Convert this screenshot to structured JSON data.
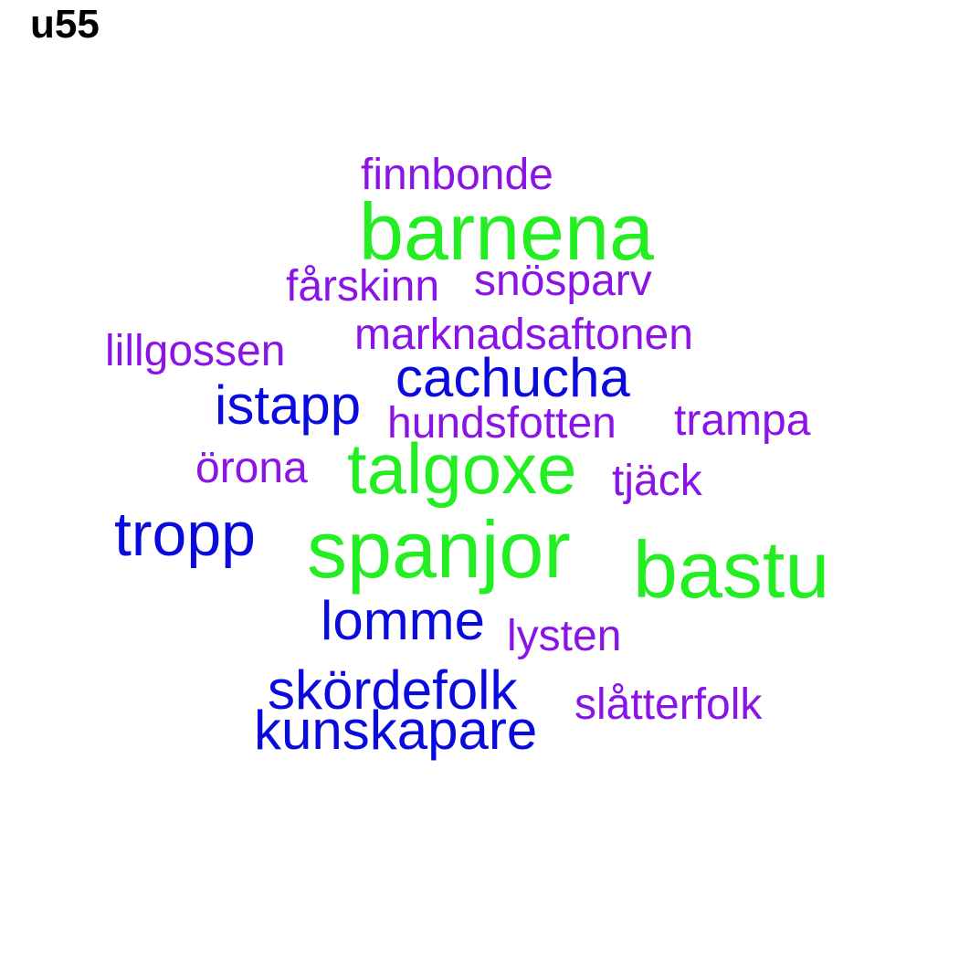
{
  "title": "u55",
  "colors": {
    "green": "#22ee22",
    "blue": "#0a0add",
    "purple": "#8a14e6"
  },
  "words": [
    {
      "text": "finnbonde",
      "color": "purple"
    },
    {
      "text": "barnena",
      "color": "green"
    },
    {
      "text": "fårskinn",
      "color": "purple"
    },
    {
      "text": "snösparv",
      "color": "purple"
    },
    {
      "text": "marknadsaftonen",
      "color": "purple"
    },
    {
      "text": "lillgossen",
      "color": "purple"
    },
    {
      "text": "cachucha",
      "color": "blue"
    },
    {
      "text": "istapp",
      "color": "blue"
    },
    {
      "text": "hundsfotten",
      "color": "purple"
    },
    {
      "text": "trampa",
      "color": "purple"
    },
    {
      "text": "örona",
      "color": "purple"
    },
    {
      "text": "talgoxe",
      "color": "green"
    },
    {
      "text": "tjäck",
      "color": "purple"
    },
    {
      "text": "tropp",
      "color": "blue"
    },
    {
      "text": "spanjor",
      "color": "green"
    },
    {
      "text": "bastu",
      "color": "green"
    },
    {
      "text": "lomme",
      "color": "blue"
    },
    {
      "text": "lysten",
      "color": "purple"
    },
    {
      "text": "skördefolk",
      "color": "blue"
    },
    {
      "text": "slåtterfolk",
      "color": "purple"
    },
    {
      "text": "kunskapare",
      "color": "blue"
    }
  ]
}
